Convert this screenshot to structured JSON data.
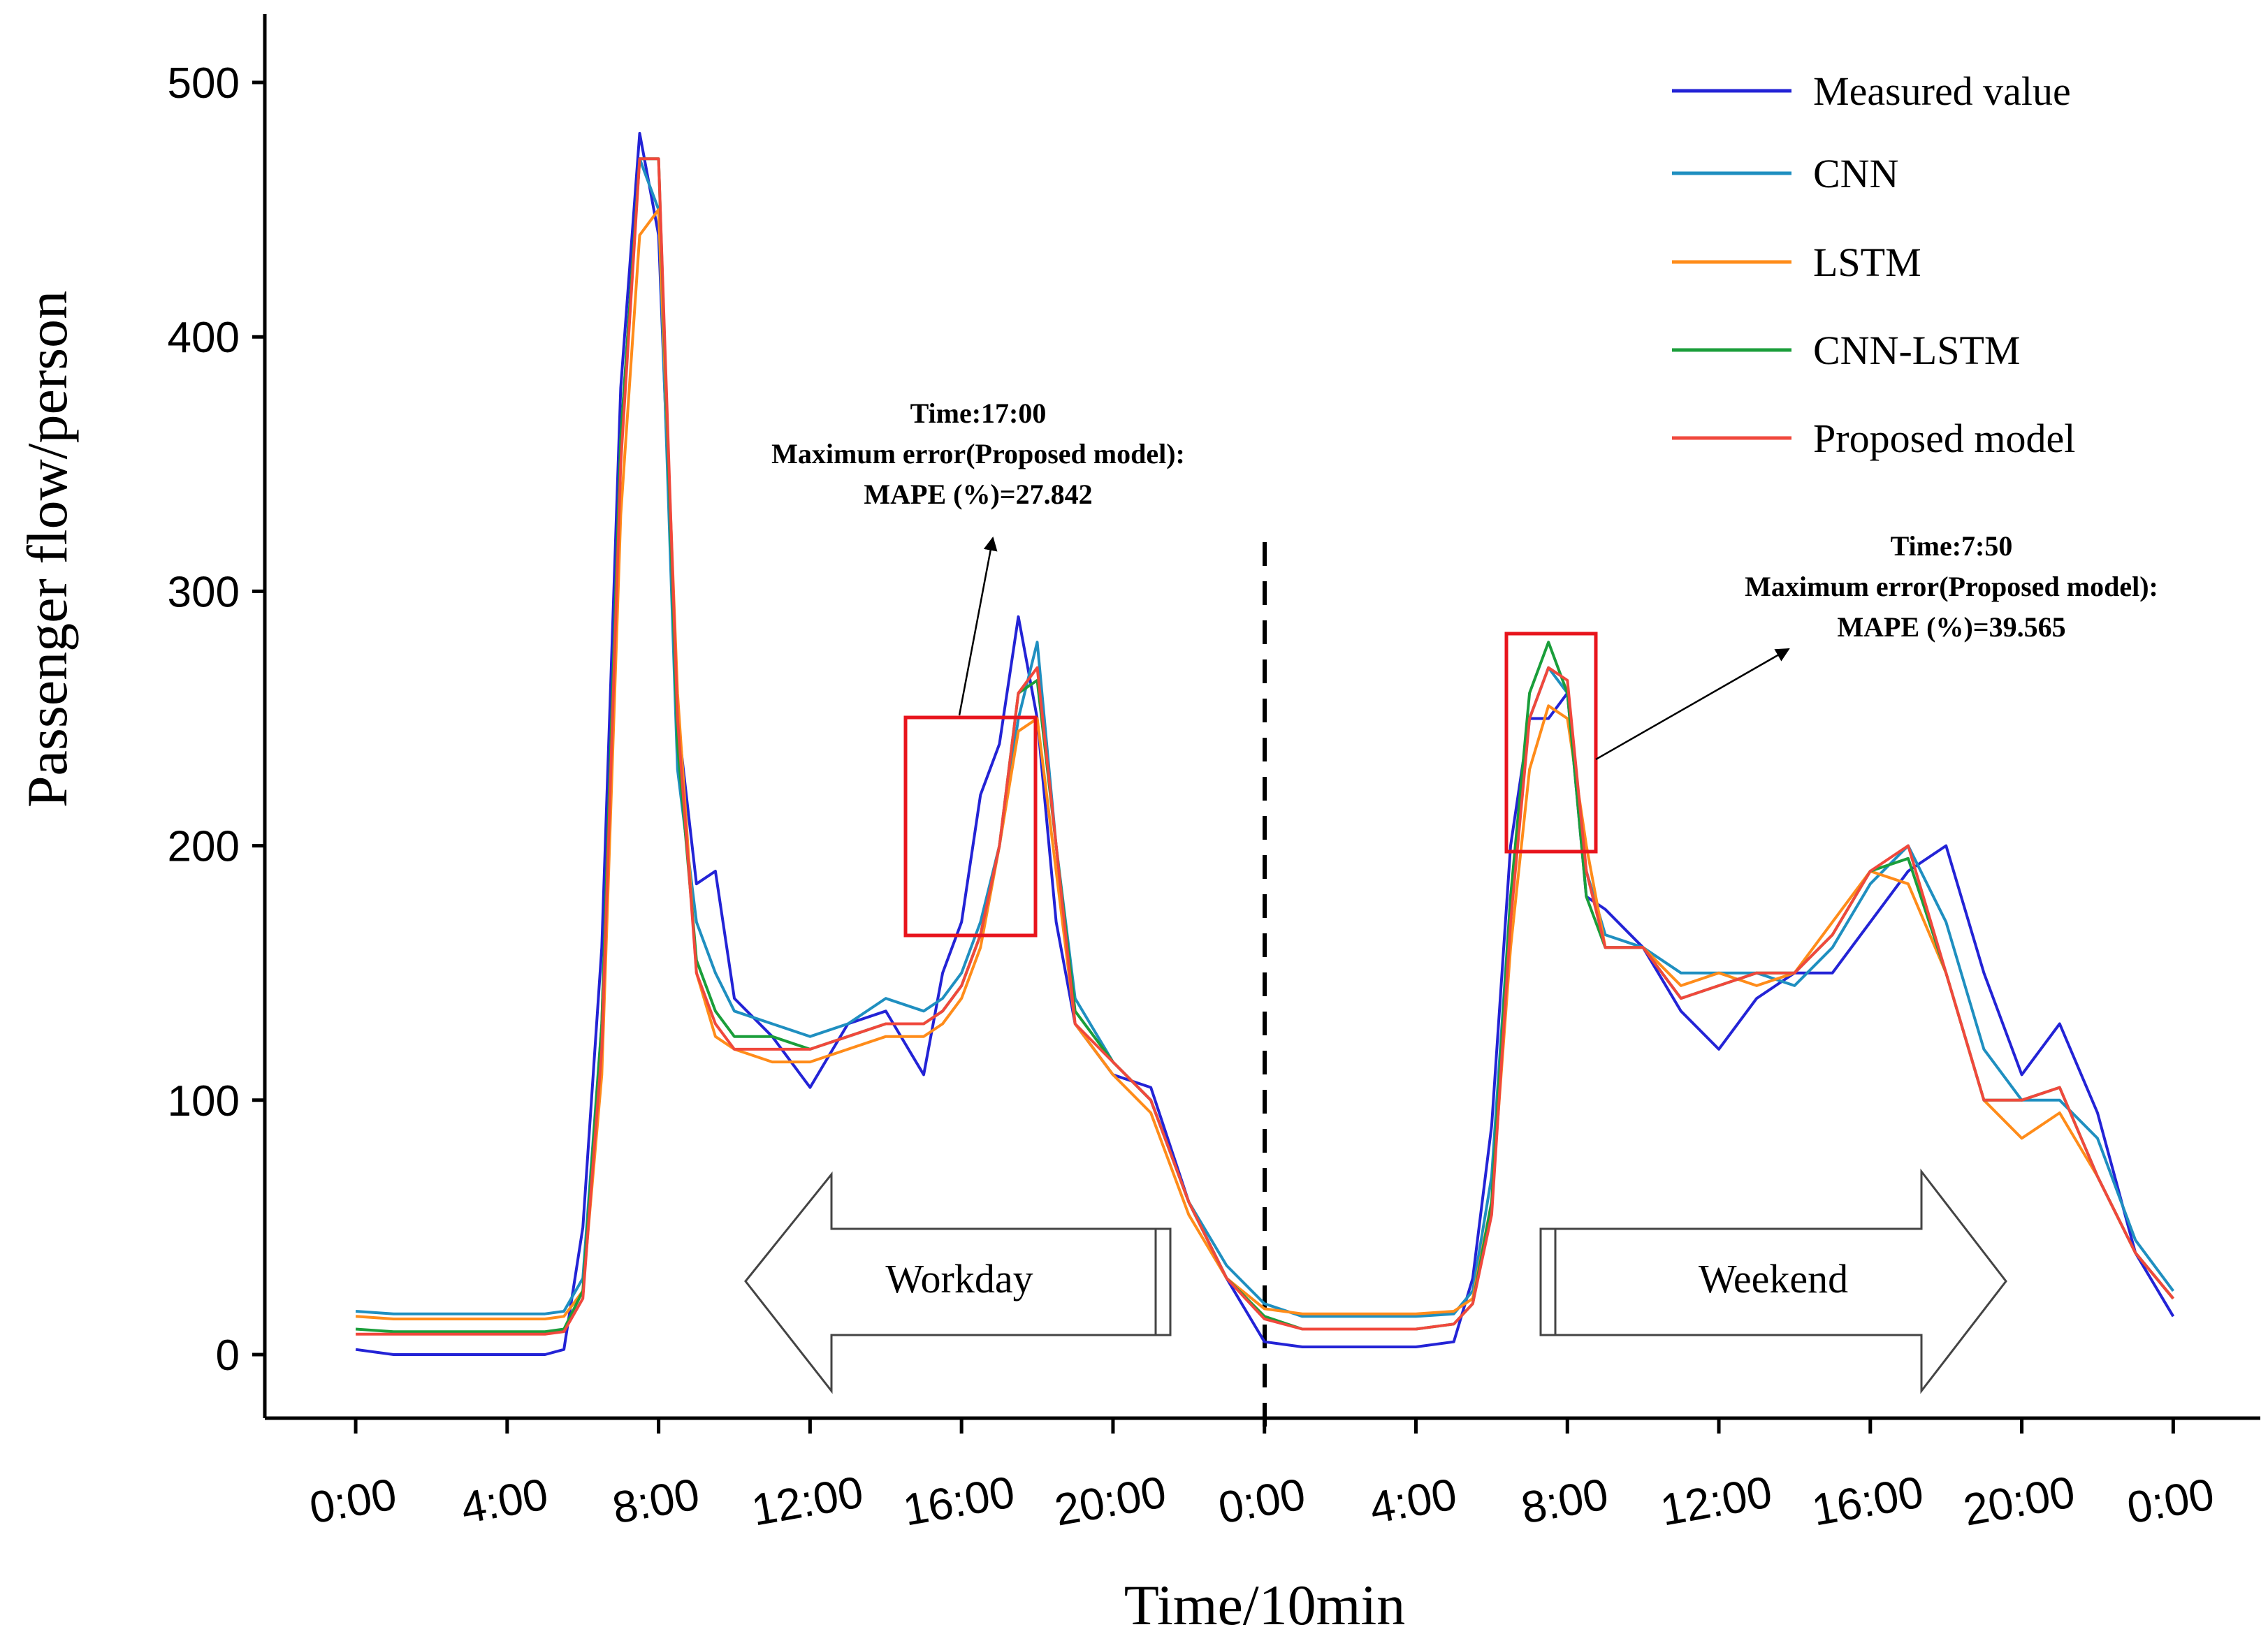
{
  "chart_data": {
    "type": "line",
    "xlabel": "Time/10min",
    "ylabel": "Passenger flow/person",
    "x": [
      0,
      1,
      2,
      3,
      4,
      5,
      5.5,
      6,
      6.5,
      7,
      7.5,
      8,
      8.5,
      9,
      9.5,
      10,
      11,
      12,
      13,
      14,
      15,
      15.5,
      16,
      16.5,
      17,
      17.5,
      18,
      18.5,
      19,
      20,
      21,
      22,
      23,
      24,
      25,
      26,
      27,
      28,
      29,
      29.5,
      30,
      30.5,
      31,
      31.5,
      32,
      32.5,
      33,
      34,
      35,
      36,
      37,
      38,
      39,
      40,
      41,
      42,
      43,
      44,
      45,
      46,
      47,
      48
    ],
    "xlim": [
      -2.4,
      50.3
    ],
    "xticks": [
      {
        "value": 0,
        "label": "0:00"
      },
      {
        "value": 4,
        "label": "4:00"
      },
      {
        "value": 8,
        "label": "8:00"
      },
      {
        "value": 12,
        "label": "12:00"
      },
      {
        "value": 16,
        "label": "16:00"
      },
      {
        "value": 20,
        "label": "20:00"
      },
      {
        "value": 24,
        "label": "0:00"
      },
      {
        "value": 28,
        "label": "4:00"
      },
      {
        "value": 32,
        "label": "8:00"
      },
      {
        "value": 36,
        "label": "12:00"
      },
      {
        "value": 40,
        "label": "16:00"
      },
      {
        "value": 44,
        "label": "20:00"
      },
      {
        "value": 48,
        "label": "0:00"
      }
    ],
    "ylim": [
      -25,
      525
    ],
    "yticks": [
      0,
      100,
      200,
      300,
      400,
      500
    ],
    "series": [
      {
        "name": "Measured value",
        "color": "#2323d6",
        "values": [
          2,
          0,
          0,
          0,
          0,
          0,
          2,
          50,
          160,
          380,
          480,
          440,
          250,
          185,
          190,
          140,
          125,
          105,
          130,
          135,
          110,
          150,
          170,
          220,
          240,
          290,
          250,
          170,
          130,
          110,
          105,
          60,
          30,
          5,
          3,
          3,
          3,
          3,
          5,
          30,
          90,
          200,
          250,
          250,
          260,
          180,
          175,
          160,
          135,
          120,
          140,
          150,
          150,
          170,
          190,
          200,
          150,
          110,
          130,
          95,
          40,
          15
        ]
      },
      {
        "name": "CNN",
        "color": "#1f8fc0",
        "values": [
          17,
          16,
          16,
          16,
          16,
          16,
          17,
          30,
          130,
          360,
          470,
          450,
          230,
          170,
          150,
          135,
          130,
          125,
          130,
          140,
          135,
          140,
          150,
          170,
          200,
          250,
          280,
          200,
          140,
          115,
          100,
          60,
          35,
          20,
          15,
          15,
          15,
          15,
          16,
          25,
          70,
          180,
          250,
          270,
          260,
          190,
          165,
          160,
          150,
          150,
          150,
          145,
          160,
          185,
          200,
          170,
          120,
          100,
          100,
          85,
          45,
          25
        ]
      },
      {
        "name": "LSTM",
        "color": "#ff8c1a",
        "values": [
          15,
          14,
          14,
          14,
          14,
          14,
          15,
          25,
          110,
          330,
          440,
          450,
          260,
          150,
          125,
          120,
          115,
          115,
          120,
          125,
          125,
          130,
          140,
          160,
          200,
          245,
          250,
          190,
          130,
          110,
          95,
          55,
          30,
          18,
          16,
          16,
          16,
          16,
          17,
          22,
          60,
          160,
          230,
          255,
          250,
          200,
          160,
          160,
          145,
          150,
          145,
          150,
          170,
          190,
          185,
          150,
          100,
          85,
          95,
          70,
          40,
          22
        ]
      },
      {
        "name": "CNN-LSTM",
        "color": "#1a9e3a",
        "values": [
          10,
          9,
          9,
          9,
          9,
          9,
          10,
          25,
          130,
          360,
          470,
          470,
          240,
          155,
          135,
          125,
          125,
          120,
          125,
          130,
          130,
          135,
          145,
          165,
          200,
          260,
          265,
          200,
          135,
          115,
          100,
          60,
          30,
          15,
          10,
          10,
          10,
          10,
          12,
          20,
          60,
          180,
          260,
          280,
          260,
          180,
          160,
          160,
          140,
          145,
          150,
          150,
          165,
          190,
          195,
          150,
          100,
          100,
          105,
          70,
          40,
          22
        ]
      },
      {
        "name": "Proposed model",
        "color": "#f0483c",
        "values": [
          8,
          8,
          8,
          8,
          8,
          8,
          9,
          22,
          120,
          350,
          470,
          470,
          250,
          150,
          130,
          120,
          120,
          120,
          125,
          130,
          130,
          135,
          145,
          165,
          200,
          260,
          270,
          200,
          130,
          115,
          100,
          60,
          30,
          14,
          10,
          10,
          10,
          10,
          12,
          20,
          55,
          170,
          250,
          270,
          265,
          190,
          160,
          160,
          140,
          145,
          150,
          150,
          165,
          190,
          200,
          150,
          100,
          100,
          105,
          70,
          40,
          22
        ]
      }
    ],
    "annotations": [
      [
        "Time:17:00",
        "Maximum error(Proposed model):",
        "MAPE (%)=27.842"
      ],
      [
        "Time:7:50",
        "Maximum error(Proposed model):",
        "MAPE (%)=39.565"
      ]
    ],
    "arrow_labels": [
      "Workday",
      "Weekend"
    ],
    "legend": "upper right"
  }
}
